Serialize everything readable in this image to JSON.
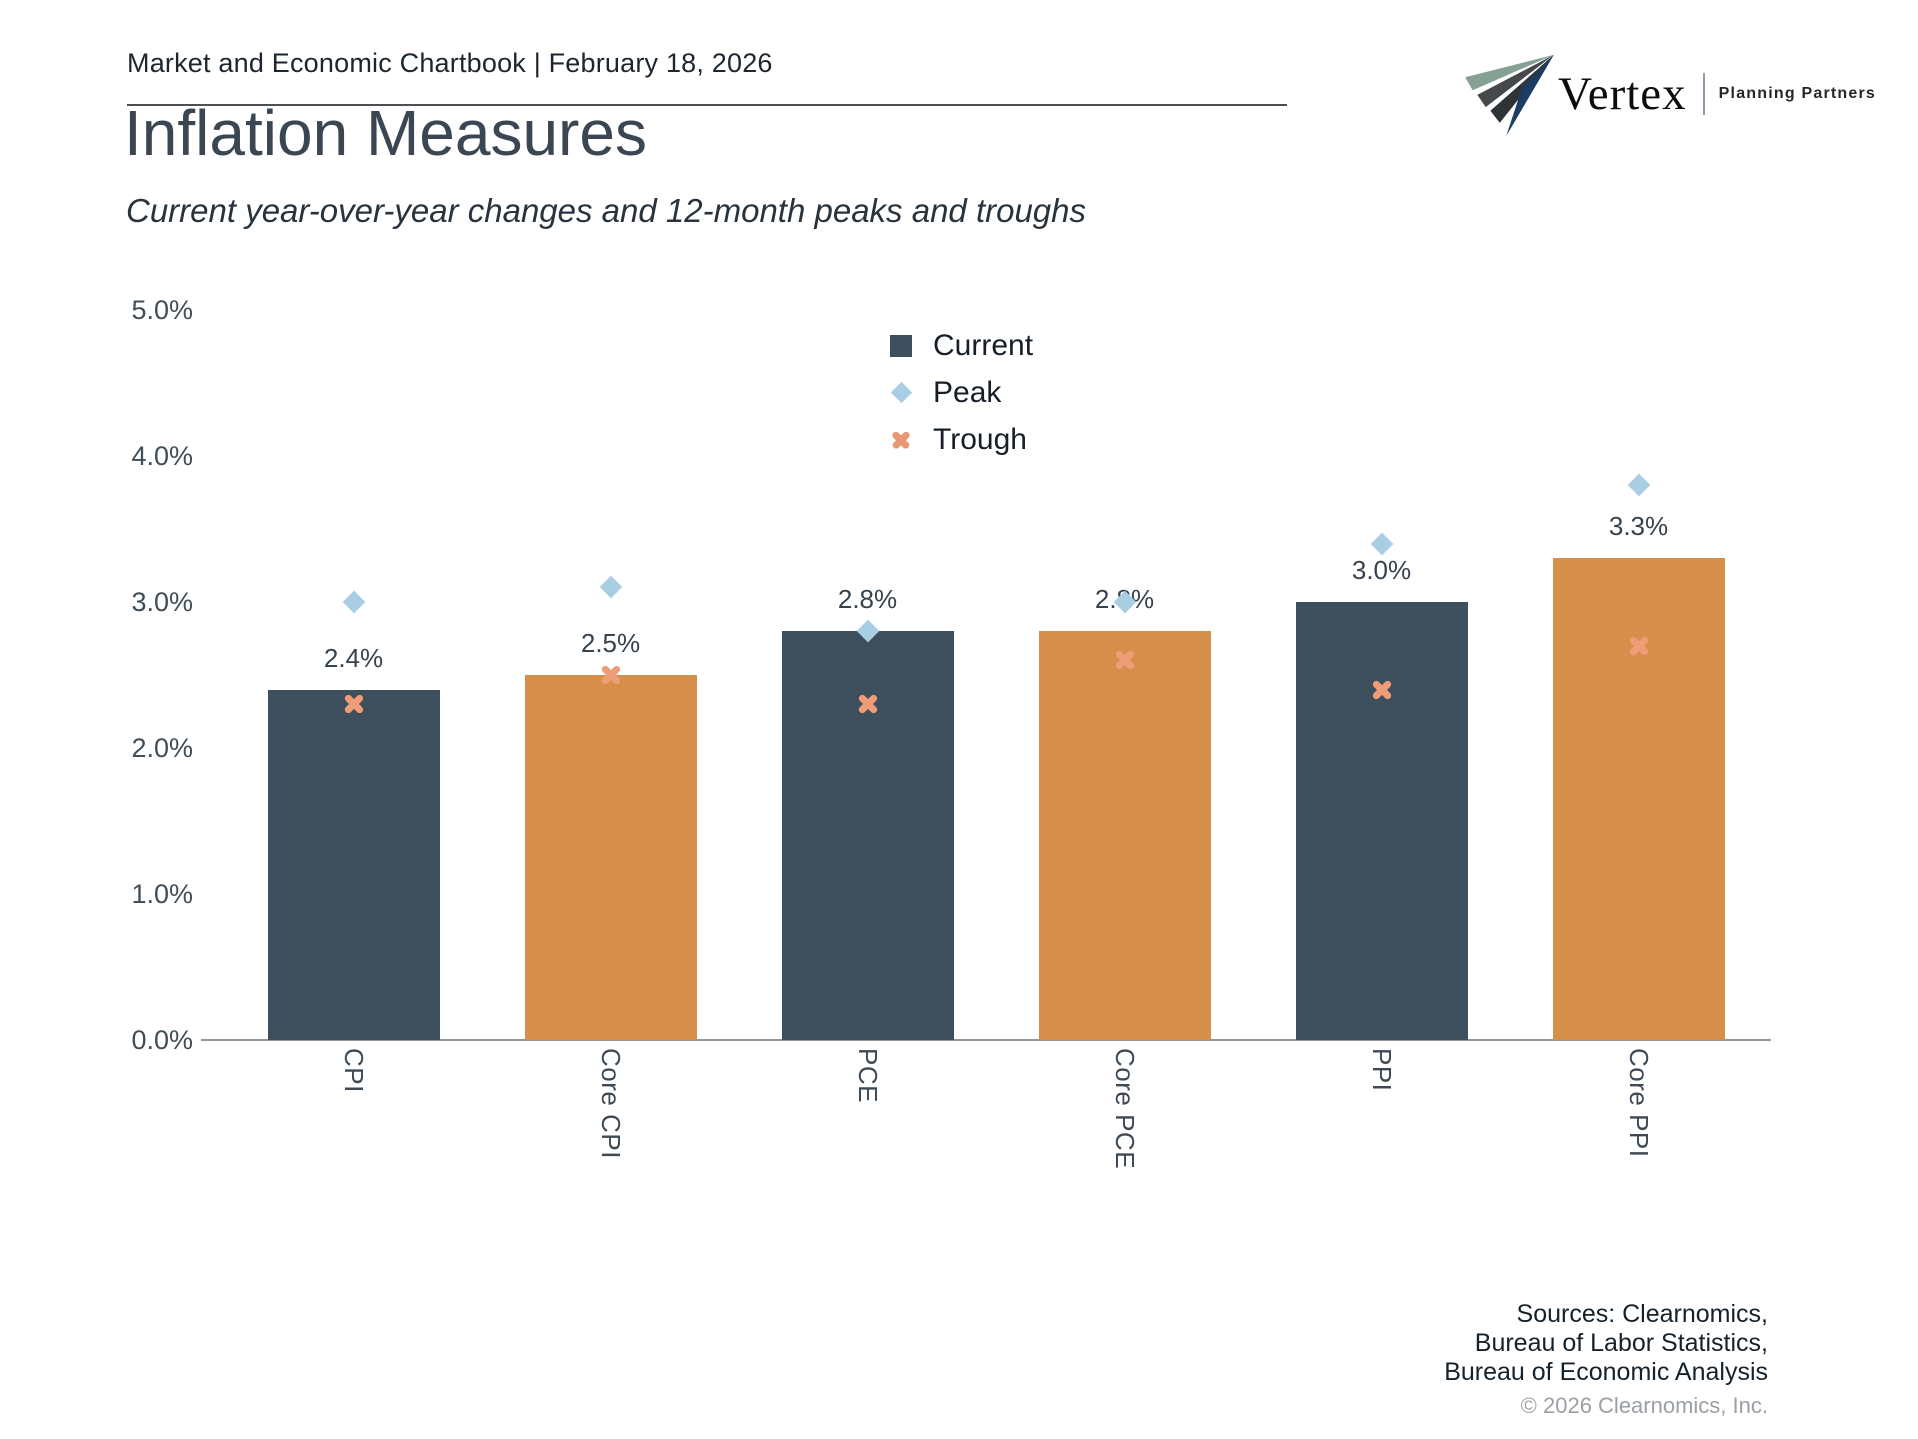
{
  "header": {
    "breadcrumb": "Market and Economic Chartbook | February 18, 2026",
    "logo": {
      "brand": "Vertex",
      "tagline": "Planning Partners"
    }
  },
  "title": "Inflation Measures",
  "subtitle": "Current year-over-year changes and 12-month peaks and troughs",
  "chart_data": {
    "type": "bar",
    "title": "Inflation Measures",
    "subtitle": "Current year-over-year changes and 12-month peaks and troughs",
    "categories": [
      "CPI",
      "Core CPI",
      "PCE",
      "Core PCE",
      "PPI",
      "Core PPI"
    ],
    "series": [
      {
        "name": "Current",
        "values": [
          2.4,
          2.5,
          2.8,
          2.8,
          3.0,
          3.3
        ]
      },
      {
        "name": "Peak",
        "values": [
          3.0,
          3.1,
          2.8,
          3.0,
          3.4,
          3.8
        ]
      },
      {
        "name": "Trough",
        "values": [
          2.3,
          2.5,
          2.3,
          2.6,
          2.4,
          2.7
        ]
      }
    ],
    "value_labels": [
      "2.4%",
      "2.5%",
      "2.8%",
      "2.8%",
      "3.0%",
      "3.3%"
    ],
    "bar_colors": [
      "#3d4f5c",
      "#d68f4a",
      "#3d4f5c",
      "#d68f4a",
      "#3d4f5c",
      "#d68f4a"
    ],
    "marker_colors": {
      "peak": "#a9cee4",
      "trough": "#ee9d76"
    },
    "ylim": [
      0,
      5
    ],
    "yticks": [
      "5.0%",
      "4.0%",
      "3.0%",
      "2.0%",
      "1.0%",
      "0.0%"
    ],
    "grid": false,
    "legend_position": "upper center",
    "legend": [
      {
        "label": "Current",
        "marker": "square",
        "color": "#3d4f5c"
      },
      {
        "label": "Peak",
        "marker": "diamond",
        "color": "#a9cee4"
      },
      {
        "label": "Trough",
        "marker": "cross",
        "color": "#e89973"
      }
    ]
  },
  "footer": {
    "sources": [
      "Sources: Clearnomics,",
      "Bureau of Labor Statistics,",
      "Bureau of Economic Analysis"
    ],
    "copyright": "© 2026 Clearnomics, Inc."
  }
}
